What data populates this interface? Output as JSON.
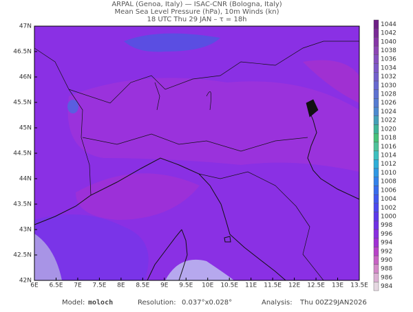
{
  "header": {
    "line1": "ARPAL (Genoa, Italy)  —  ISAC-CNR (Bologna, Italy)",
    "line2": "Mean Sea Level Pressure (hPa), 10m Winds (kn)",
    "line3": "18 UTC Thu 29 JAN  –  τ = 18h"
  },
  "lat_labels": [
    "47N",
    "46.5N",
    "46N",
    "45.5N",
    "45N",
    "44.5N",
    "44N",
    "43.5N",
    "43N",
    "42.5N",
    "42N"
  ],
  "lon_labels": [
    "6E",
    "6.5E",
    "7E",
    "7.5E",
    "8E",
    "8.5E",
    "9E",
    "9.5E",
    "10E",
    "10.5E",
    "11E",
    "11.5E",
    "12E",
    "12.5E",
    "13E",
    "13.5E"
  ],
  "colorbar": {
    "labels": [
      "1044",
      "1042",
      "1040",
      "1038",
      "1036",
      "1034",
      "1032",
      "1030",
      "1028",
      "1026",
      "1024",
      "1022",
      "1020",
      "1018",
      "1016",
      "1014",
      "1012",
      "1010",
      "1008",
      "1006",
      "1004",
      "1002",
      "1000",
      "998",
      "996",
      "994",
      "992",
      "990",
      "988",
      "986",
      "984"
    ],
    "colors": [
      "#6e1f86",
      "#7a2a96",
      "#8636a6",
      "#8c45b4",
      "#8650c0",
      "#7d58c8",
      "#735fcc",
      "#6868cf",
      "#5e72d2",
      "#557cd3",
      "#4c8ad0",
      "#43a0b8",
      "#3eb498",
      "#46c27a",
      "#4ec29a",
      "#3cc0c0",
      "#2eaed8",
      "#2e98e4",
      "#3282ea",
      "#386cec",
      "#4058ee",
      "#4c48ee",
      "#5c38ea",
      "#7030e4",
      "#8a2ee0",
      "#a030d4",
      "#b842c8",
      "#c862c4",
      "#d488c8",
      "#dcb0d4",
      "#e6d8e2"
    ]
  },
  "footer": {
    "model_label": "Model:",
    "model": "moloch",
    "res_label": "Resolution:",
    "res": "0.037°x0.028°",
    "analysis_label": "Analysis:",
    "analysis": "Thu 00Z29JAN2026"
  }
}
